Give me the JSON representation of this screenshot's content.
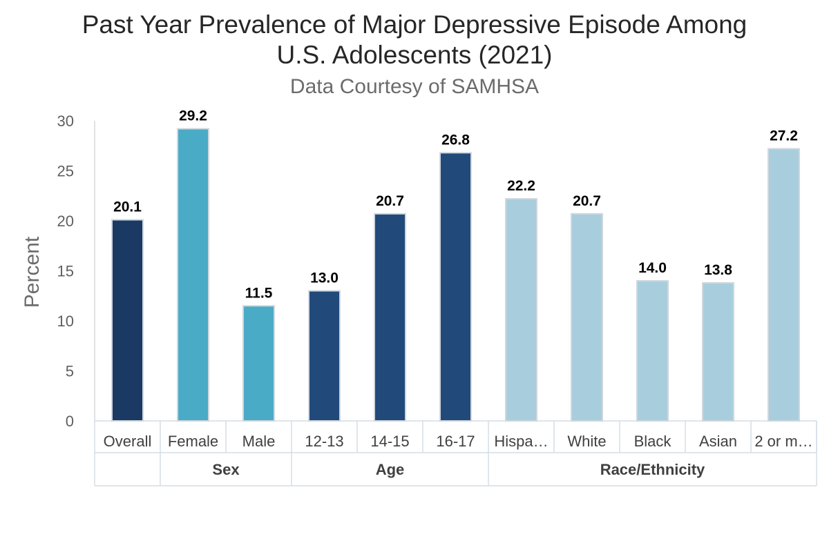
{
  "chart_data": {
    "type": "bar",
    "title": "Past Year Prevalence of Major Depressive Episode Among U.S. Adolescents (2021)",
    "title_lines": [
      "Past Year Prevalence of Major Depressive Episode Among",
      "U.S. Adolescents (2021)"
    ],
    "subtitle": "Data Courtesy of SAMHSA",
    "ylabel": "Percent",
    "xlabel": "",
    "ylim": [
      0,
      30
    ],
    "yticks": [
      0,
      5,
      10,
      15,
      20,
      25,
      30
    ],
    "categories": [
      "Overall",
      "Female",
      "Male",
      "12-13",
      "14-15",
      "16-17",
      "Hispa…",
      "White",
      "Black",
      "Asian",
      "2 or m…"
    ],
    "values": [
      20.1,
      29.2,
      11.5,
      13.0,
      20.7,
      26.8,
      22.2,
      20.7,
      14.0,
      13.8,
      27.2
    ],
    "value_labels": [
      "20.1",
      "29.2",
      "11.5",
      "13.0",
      "20.7",
      "26.8",
      "22.2",
      "20.7",
      "14.0",
      "13.8",
      "27.2"
    ],
    "bar_colors": [
      "#1b3a63",
      "#4aabc6",
      "#4aabc6",
      "#214a7b",
      "#214a7b",
      "#214a7b",
      "#a8cedd",
      "#a8cedd",
      "#a8cedd",
      "#a8cedd",
      "#a8cedd"
    ],
    "groups": [
      {
        "label": "",
        "start": 0,
        "end": 0
      },
      {
        "label": "Sex",
        "start": 1,
        "end": 2
      },
      {
        "label": "Age",
        "start": 3,
        "end": 5
      },
      {
        "label": "Race/Ethnicity",
        "start": 6,
        "end": 10
      }
    ],
    "grid": false,
    "legend": "none"
  }
}
